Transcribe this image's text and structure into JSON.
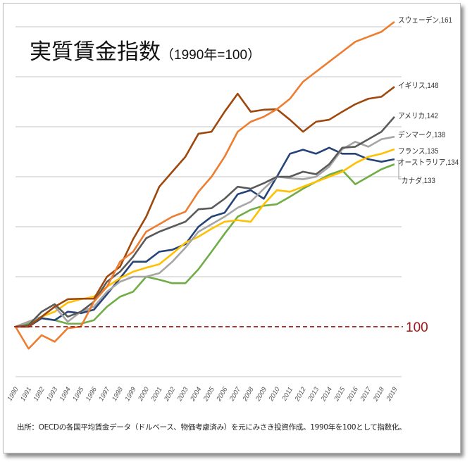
{
  "title": "実質賃金指数",
  "subtitle": "（1990年=100）",
  "source": "出所：OECDの各国平均賃金データ（ドルベース、物価考慮済み）を元にみさき投資作成。1990年を100として指数化。",
  "baseline_label": "100",
  "chart_data": {
    "type": "line",
    "title": "実質賃金指数（1990年=100）",
    "xlabel": "",
    "ylabel": "",
    "ylim": [
      88,
      163
    ],
    "gridlines": [
      90,
      100,
      110,
      120,
      130,
      140,
      150,
      160
    ],
    "baseline": 100,
    "x": [
      "1990",
      "1991",
      "1992",
      "1993",
      "1994",
      "1995",
      "1996",
      "1997",
      "1998",
      "1999",
      "2000",
      "2001",
      "2002",
      "2003",
      "2004",
      "2005",
      "2006",
      "2007",
      "2008",
      "2009",
      "2010",
      "2011",
      "2012",
      "2013",
      "2014",
      "2015",
      "2016",
      "2017",
      "2018",
      "2019"
    ],
    "series": [
      {
        "name": "スウェーデン",
        "label": "スウェーデン,161",
        "color": "#ED7D31",
        "values": [
          100,
          95.6,
          98.3,
          97,
          99.7,
          100,
          105,
          108,
          113,
          115,
          119,
          120.5,
          122,
          123,
          127,
          130,
          134,
          139,
          141,
          142,
          143.5,
          145.6,
          149,
          151,
          153,
          155,
          157,
          158,
          159,
          161
        ]
      },
      {
        "name": "イギリス",
        "label": "イギリス,148",
        "color": "#9E480E",
        "values": [
          100,
          100,
          102,
          104,
          105.5,
          105.6,
          105.6,
          110,
          112,
          117.5,
          122,
          128,
          131,
          134,
          138.6,
          139,
          143,
          146.6,
          143,
          143.4,
          143.5,
          141.4,
          139,
          141,
          141.4,
          143,
          144.5,
          145.6,
          146,
          148
        ]
      },
      {
        "name": "アメリカ",
        "label": "アメリカ,142",
        "color": "#5A5A5A",
        "values": [
          100,
          100.3,
          103,
          104.5,
          102,
          103,
          105,
          109,
          111,
          114,
          117.7,
          119,
          120,
          121,
          123.5,
          123.7,
          125.6,
          128,
          127.6,
          128.7,
          130,
          130,
          131,
          130.5,
          132.5,
          135.8,
          136,
          137.5,
          139,
          142
        ]
      },
      {
        "name": "デンマーク",
        "label": "デンマーク,138",
        "color": "#A5A5A5",
        "values": [
          100,
          101,
          102,
          104,
          101,
          103,
          104,
          107,
          109,
          110,
          110,
          110.7,
          113,
          115.8,
          119,
          120.5,
          122,
          123.8,
          125,
          127.6,
          130,
          129.7,
          129.5,
          130,
          132,
          135.5,
          137,
          136,
          137.5,
          138
        ]
      },
      {
        "name": "フランス",
        "label": "フランス,135",
        "color": "#FFC000",
        "values": [
          100,
          101,
          102,
          103,
          104.8,
          105.5,
          106,
          108,
          109.7,
          111,
          111.8,
          112.5,
          114.6,
          116.8,
          118,
          119.6,
          121,
          121.3,
          121,
          124.5,
          127.3,
          127,
          128,
          129,
          130,
          131,
          132.7,
          134,
          134.6,
          135.5
        ]
      },
      {
        "name": "オーストラリア",
        "label": "オーストラリア,134",
        "color": "#264478",
        "values": [
          100,
          100,
          101.7,
          101.3,
          103,
          102.7,
          103.4,
          106.5,
          109.7,
          113,
          113,
          115,
          115.4,
          116.5,
          120,
          122,
          122.8,
          126.5,
          127.3,
          125.6,
          130,
          134.6,
          135.4,
          134.6,
          135.8,
          134.6,
          134.6,
          133.5,
          133,
          133.5
        ]
      },
      {
        "name": "カナダ",
        "label": "カナダ,133",
        "color": "#70AD47",
        "values": [
          100,
          100.6,
          101.7,
          101.3,
          100.6,
          100.6,
          101.3,
          104,
          106,
          107,
          110,
          109.4,
          108.7,
          108.7,
          111.5,
          115,
          118.6,
          122,
          123.4,
          124.2,
          124.5,
          126,
          127.6,
          129,
          130.4,
          131.3,
          128.5,
          130,
          131.5,
          132.5
        ]
      }
    ]
  }
}
